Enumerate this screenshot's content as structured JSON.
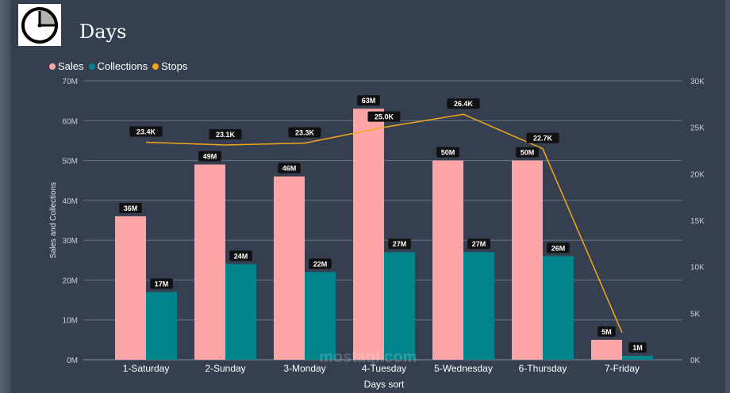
{
  "title": "Days",
  "watermark": "mostaql.com",
  "chart_data": {
    "type": "bar+line",
    "categories": [
      "1-Saturday",
      "2-Sunday",
      "3-Monday",
      "4-Tuesday",
      "5-Wednesday",
      "6-Thursday",
      "7-Friday"
    ],
    "series": [
      {
        "name": "Sales",
        "type": "bar",
        "axis": "left",
        "color": "#fda5a6",
        "values": [
          36,
          49,
          46,
          63,
          50,
          50,
          5
        ],
        "labels": [
          "36M",
          "49M",
          "46M",
          "63M",
          "50M",
          "50M",
          "5M"
        ]
      },
      {
        "name": "Collections",
        "type": "bar",
        "axis": "left",
        "color": "#01848b",
        "values": [
          17,
          24,
          22,
          27,
          27,
          26,
          1
        ],
        "labels": [
          "17M",
          "24M",
          "22M",
          "27M",
          "27M",
          "26M",
          "1M"
        ]
      },
      {
        "name": "Stops",
        "type": "line",
        "axis": "right",
        "color": "#f2a71b",
        "values": [
          23.4,
          23.1,
          23.3,
          25.0,
          26.4,
          22.7,
          2.9
        ],
        "labels": [
          "23.4K",
          "23.1K",
          "23.3K",
          "25.0K",
          "26.4K",
          "22.7K",
          ""
        ]
      }
    ],
    "xlabel": "Days sort",
    "ylabel": "Sales and Collections",
    "ylim": [
      0,
      70
    ],
    "yticks": [
      "0M",
      "10M",
      "20M",
      "30M",
      "40M",
      "50M",
      "60M",
      "70M"
    ],
    "y2lim": [
      0,
      30
    ],
    "y2ticks": [
      "0K",
      "5K",
      "10K",
      "15K",
      "20K",
      "25K",
      "30K"
    ],
    "grid": true,
    "legend": "top-left"
  }
}
